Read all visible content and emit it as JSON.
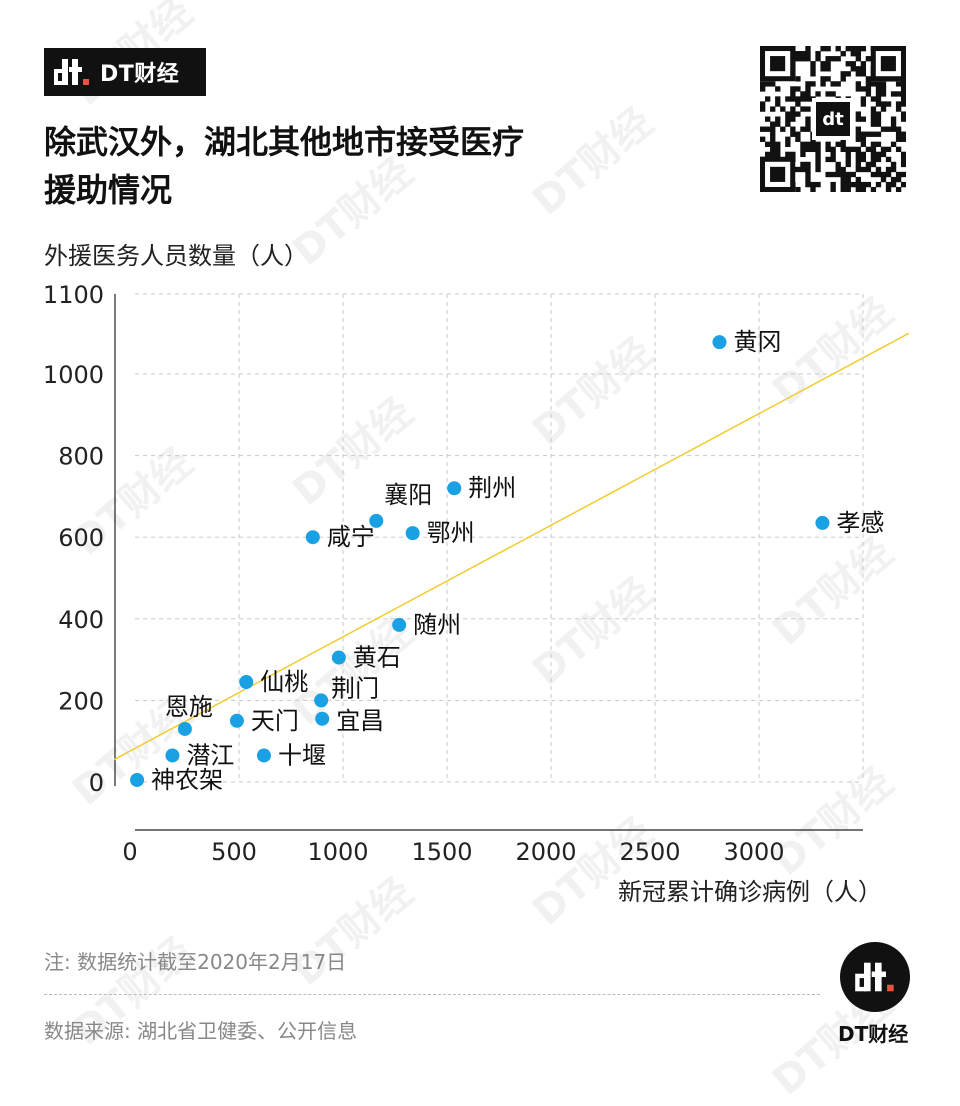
{
  "brand": {
    "name": "DT财经",
    "logo_text": "dt"
  },
  "title": "除武汉外，湖北其他地市接受医疗援助情况",
  "note": "注: 数据统计截至2020年2月17日",
  "source": "数据来源: 湖北省卫健委、公开信息",
  "bottom_brand": "DT财经",
  "colors": {
    "point": "#1aa1e3",
    "trend": "#f2cc2e",
    "grid": "#c8c8c8",
    "text": "#111111",
    "muted": "#888888"
  },
  "chart_data": {
    "type": "scatter",
    "xlabel": "新冠累计确诊病例（人）",
    "ylabel": "外援医务人员数量（人）",
    "xlim": [
      0,
      3500
    ],
    "ylim": [
      0,
      1100
    ],
    "xticks": [
      0,
      500,
      1000,
      1500,
      2000,
      2500,
      3000
    ],
    "yticks": [
      0,
      200,
      400,
      600,
      800,
      1000,
      1100
    ],
    "grid": true,
    "trendline": {
      "x": [
        -100,
        3600
      ],
      "y": [
        55,
        1085
      ]
    },
    "points": [
      {
        "label": "黄冈",
        "x": 2810,
        "y": 1078
      },
      {
        "label": "孝感",
        "x": 3305,
        "y": 635
      },
      {
        "label": "荆州",
        "x": 1535,
        "y": 720
      },
      {
        "label": "襄阳",
        "x": 1160,
        "y": 640
      },
      {
        "label": "鄂州",
        "x": 1335,
        "y": 610
      },
      {
        "label": "咸宁",
        "x": 855,
        "y": 600
      },
      {
        "label": "随州",
        "x": 1270,
        "y": 385
      },
      {
        "label": "黄石",
        "x": 980,
        "y": 305
      },
      {
        "label": "仙桃",
        "x": 535,
        "y": 245
      },
      {
        "label": "荆门",
        "x": 895,
        "y": 200
      },
      {
        "label": "恩施",
        "x": 240,
        "y": 130
      },
      {
        "label": "天门",
        "x": 490,
        "y": 150
      },
      {
        "label": "宜昌",
        "x": 900,
        "y": 155
      },
      {
        "label": "潜江",
        "x": 180,
        "y": 65
      },
      {
        "label": "十堰",
        "x": 620,
        "y": 65
      },
      {
        "label": "神农架",
        "x": 10,
        "y": 5
      }
    ]
  }
}
